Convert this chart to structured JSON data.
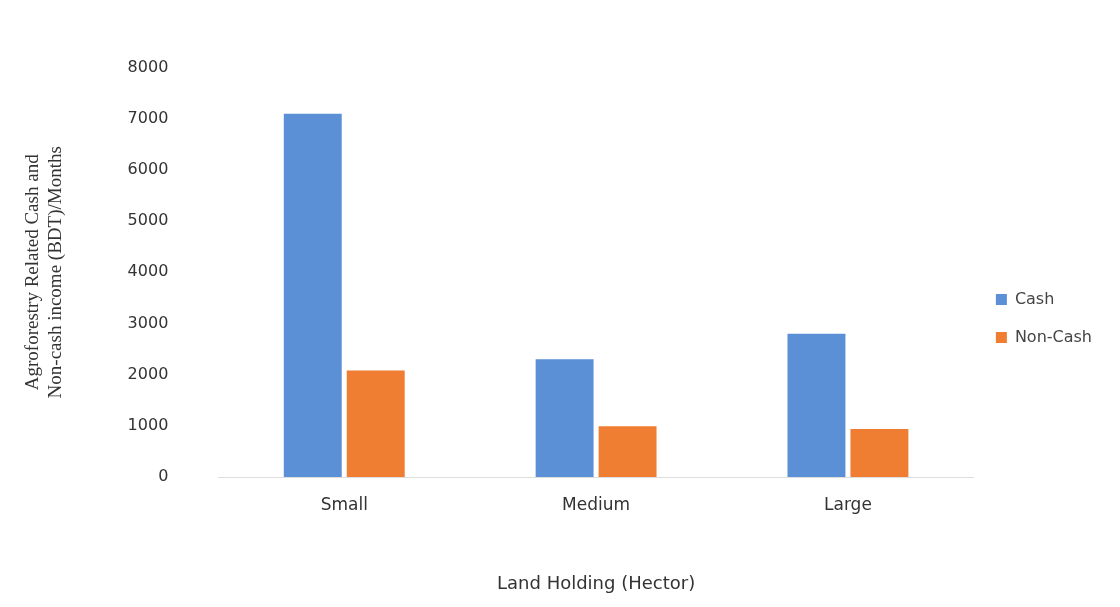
{
  "chart_data": {
    "type": "bar",
    "xlabel": "Land Holding (Hector)",
    "ylabel": "Agroforestry Related Cash and Non-cash income (BDT)/Months",
    "categories": [
      "Small",
      "Medium",
      "Large"
    ],
    "series": [
      {
        "name": "Cash",
        "color": "#5b8fd6",
        "values": [
          7100,
          2300,
          2800
        ]
      },
      {
        "name": "Non-Cash",
        "color": "#ef7d32",
        "values": [
          2080,
          990,
          940
        ]
      }
    ],
    "ylim": [
      0,
      8000
    ],
    "yticks": [
      0,
      1000,
      2000,
      3000,
      4000,
      5000,
      6000,
      7000,
      8000
    ],
    "grid": false,
    "legend": "right"
  }
}
